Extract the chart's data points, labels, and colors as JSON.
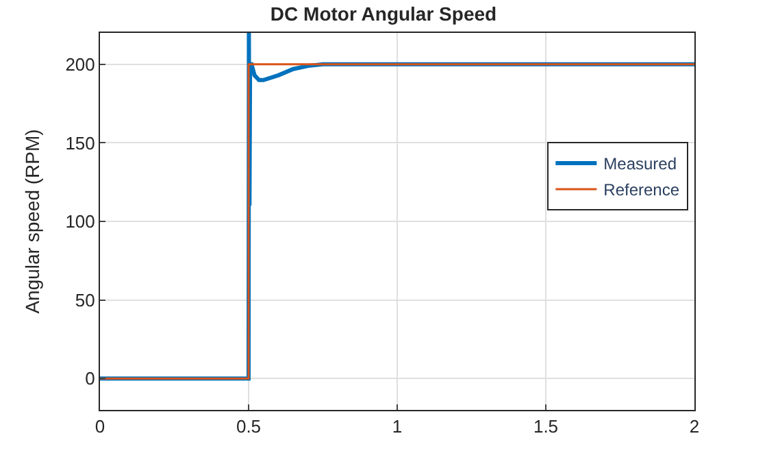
{
  "chart_data": {
    "type": "line",
    "title": "DC Motor Angular Speed",
    "ylabel": "Angular speed (RPM)",
    "series": [
      {
        "name": "Measured",
        "color": "#0072bd",
        "x": [
          0,
          0.5,
          0.501,
          0.503,
          0.505,
          0.51,
          0.52,
          0.535,
          0.55,
          0.6,
          0.65,
          0.7,
          0.75,
          0.8,
          2
        ],
        "values": [
          0,
          0,
          220,
          110,
          200,
          200,
          193,
          190,
          190,
          193,
          197,
          199,
          200,
          200,
          200
        ]
      },
      {
        "name": "Reference",
        "color": "#d95319",
        "type": "step",
        "x": [
          0,
          0.5,
          2
        ],
        "values": [
          0,
          200,
          200
        ]
      }
    ],
    "xlim": [
      0,
      2
    ],
    "xticks": [
      0,
      0.5,
      1,
      1.5,
      2
    ],
    "ylim": [
      -20,
      220
    ],
    "yticks": [
      0,
      50,
      100,
      150,
      200
    ],
    "grid": true,
    "legend": "right"
  }
}
